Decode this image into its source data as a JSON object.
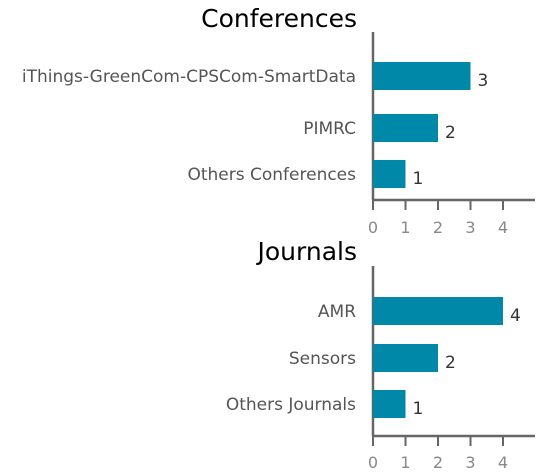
{
  "colors": {
    "bar": "#0088a8",
    "axis": "#666666"
  },
  "chart_data": [
    {
      "type": "bar",
      "orientation": "horizontal",
      "title": "Conferences",
      "categories": [
        "iThings-GreenCom-CPSCom-SmartData",
        "PIMRC",
        "Others Conferences"
      ],
      "values": [
        3,
        2,
        1
      ],
      "xticks": [
        "0",
        "1",
        "2",
        "3",
        "4"
      ],
      "xlim": [
        0,
        5
      ],
      "grid": false
    },
    {
      "type": "bar",
      "orientation": "horizontal",
      "title": "Journals",
      "categories": [
        "AMR",
        "Sensors",
        "Others Journals"
      ],
      "values": [
        4,
        2,
        1
      ],
      "xticks": [
        "0",
        "1",
        "2",
        "3",
        "4"
      ],
      "xlim": [
        0,
        5
      ],
      "grid": false
    }
  ]
}
